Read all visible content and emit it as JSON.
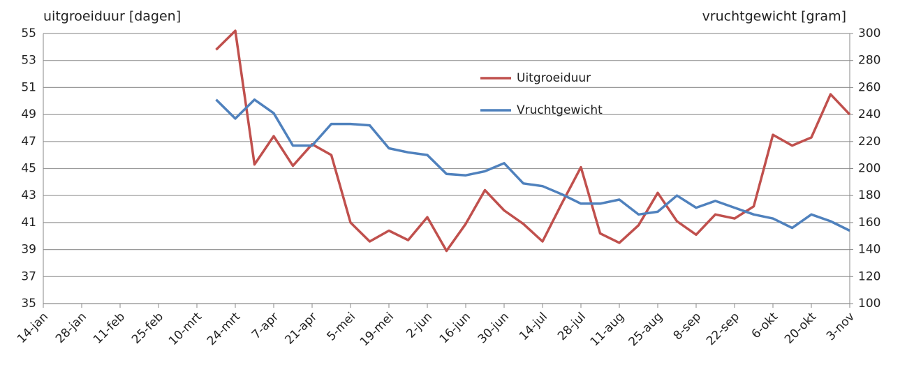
{
  "chart_data": {
    "type": "line",
    "y_label": "uitgroeiduur [dagen]",
    "y2_label": "vruchtgewicht [gram]",
    "categories": [
      "14-jan",
      null,
      "28-jan",
      null,
      "11-feb",
      null,
      "25-feb",
      null,
      "10-mrt",
      null,
      "24-mrt",
      null,
      "7-apr",
      null,
      "21-apr",
      null,
      "5-mei",
      null,
      "19-mei",
      null,
      "2-jun",
      null,
      "16-jun",
      null,
      "30-jun",
      null,
      "14-jul",
      null,
      "28-jul",
      null,
      "11-aug",
      null,
      "25-aug",
      null,
      "8-sep",
      null,
      "22-sep",
      null,
      "6-okt",
      null,
      "20-okt",
      null,
      "3-nov"
    ],
    "series": [
      {
        "name": "Uitgroeiduur",
        "color": "#c0504d",
        "values": [
          null,
          null,
          null,
          null,
          null,
          null,
          null,
          null,
          null,
          53.8,
          55.2,
          45.3,
          47.4,
          45.2,
          46.8,
          46.0,
          41.0,
          39.6,
          40.4,
          39.7,
          41.4,
          38.9,
          40.9,
          43.4,
          41.9,
          40.9,
          39.6,
          42.4,
          45.1,
          40.2,
          39.5,
          40.8,
          43.2,
          41.1,
          40.1,
          41.6,
          41.3,
          42.2,
          47.5,
          46.7,
          47.3,
          50.5,
          49.0
        ]
      },
      {
        "name": "Vruchtgewicht",
        "color": "#4f81bd",
        "axis": "y2",
        "values": [
          null,
          null,
          null,
          null,
          null,
          null,
          null,
          null,
          null,
          251,
          237,
          251,
          241,
          217,
          217,
          233,
          233,
          232,
          215,
          212,
          210,
          196,
          195,
          198,
          204,
          189,
          187,
          181,
          174,
          174,
          177,
          166,
          168,
          180,
          171,
          176,
          171,
          166,
          163,
          156,
          166,
          161,
          154
        ]
      }
    ],
    "ylim": [
      35,
      55
    ],
    "yticks": [
      35,
      37,
      39,
      41,
      43,
      45,
      47,
      49,
      51,
      53,
      55
    ],
    "y2lim": [
      100,
      300
    ],
    "y2ticks": [
      100,
      120,
      140,
      160,
      180,
      200,
      220,
      240,
      260,
      280,
      300
    ],
    "grid": true
  }
}
